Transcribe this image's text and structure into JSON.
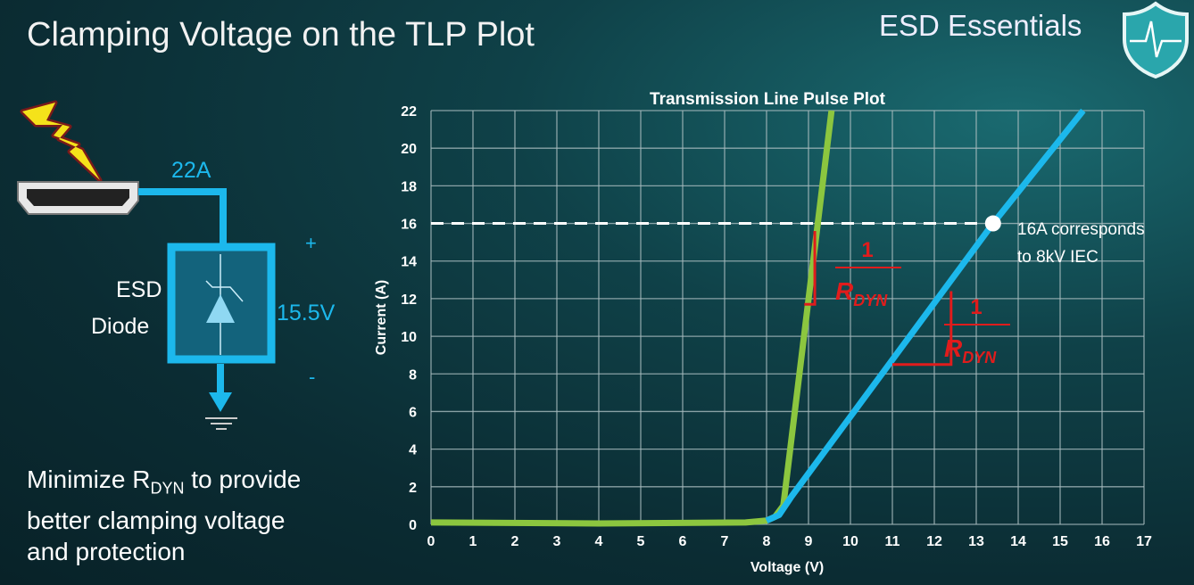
{
  "slide": {
    "title": "Clamping Voltage on the TLP Plot",
    "brand": "ESD Essentials",
    "bottom_text": {
      "line1_pre": "Minimize R",
      "line1_sub": "DYN",
      "line1_post": " to provide",
      "line2": "better clamping voltage",
      "line3": "and protection"
    }
  },
  "circuit": {
    "current_label": "22A",
    "device_label_1": "ESD",
    "device_label_2": "Diode",
    "voltage_label": "15.5V",
    "plus": "+",
    "minus": "-",
    "colors": {
      "wire": "#1cb8ec",
      "bolt": "#f5e21a"
    }
  },
  "chart_data": {
    "type": "line",
    "title": "Transmission Line Pulse Plot",
    "xlabel": "Voltage (V)",
    "ylabel": "Current (A)",
    "xlim": [
      0,
      17
    ],
    "ylim": [
      0,
      22
    ],
    "xticks": [
      "0",
      "1",
      "2",
      "3",
      "4",
      "5",
      "6",
      "7",
      "8",
      "9",
      "10",
      "11",
      "12",
      "13",
      "14",
      "15",
      "16",
      "17"
    ],
    "yticks": [
      "0",
      "2",
      "4",
      "6",
      "8",
      "10",
      "12",
      "14",
      "16",
      "18",
      "20",
      "22"
    ],
    "grid": true,
    "series": [
      {
        "color": "#8cc63f",
        "x": [
          0,
          4,
          7.5,
          8.0,
          8.2,
          8.4,
          9.55
        ],
        "y": [
          0.1,
          0.05,
          0.1,
          0.2,
          0.4,
          1.0,
          22
        ]
      },
      {
        "color": "#1cb8ec",
        "x": [
          8.0,
          8.3,
          8.6,
          13.4,
          15.55
        ],
        "y": [
          0.2,
          0.5,
          1.5,
          16,
          22
        ]
      }
    ],
    "reference_line": {
      "y": 16,
      "style": "dashed",
      "color": "#ffffff"
    },
    "marker": {
      "x": 13.4,
      "y": 16,
      "color": "#ffffff"
    },
    "annotation": {
      "line1": "16A corresponds",
      "line2": "to 8kV IEC"
    },
    "slope_labels": [
      {
        "numerator": "1",
        "denominator": "R",
        "subscript": "DYN",
        "color": "#e01c1c"
      },
      {
        "numerator": "1",
        "denominator": "R",
        "subscript": "DYN",
        "color": "#e01c1c"
      }
    ]
  }
}
